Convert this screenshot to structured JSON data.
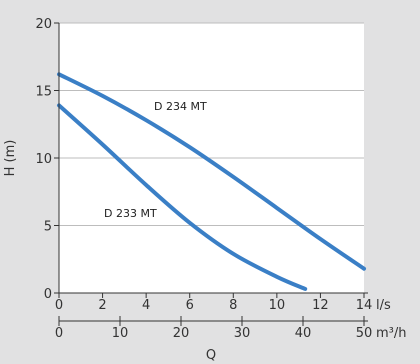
{
  "chart_data": {
    "type": "line",
    "title": "",
    "xlabel": "Q",
    "ylabel": "H (m)",
    "xlim": [
      0,
      14
    ],
    "ylim": [
      0,
      20
    ],
    "x_ticks": [
      "0",
      "2",
      "4",
      "6",
      "8",
      "10",
      "12",
      "14"
    ],
    "x_unit": "l/s",
    "x2_ticks": [
      "0",
      "10",
      "20",
      "30",
      "40",
      "50"
    ],
    "x2_unit": "m³/h",
    "y_ticks": [
      "0",
      "5",
      "10",
      "15",
      "20"
    ],
    "grid": "horizontal",
    "series": [
      {
        "name": "D 234 MT",
        "x": [
          0,
          2,
          4,
          6,
          8,
          10,
          12,
          14
        ],
        "y": [
          16.2,
          14.6,
          12.8,
          10.8,
          8.6,
          6.3,
          4.0,
          1.8
        ]
      },
      {
        "name": "D 233 MT",
        "x": [
          0,
          2,
          4,
          6,
          8,
          10,
          11.3
        ],
        "y": [
          13.9,
          11.0,
          8.0,
          5.2,
          2.9,
          1.2,
          0.3
        ]
      }
    ],
    "colors": {
      "line": "#3a7fc6",
      "background": "#e1e1e2",
      "plot": "#ffffff"
    }
  }
}
